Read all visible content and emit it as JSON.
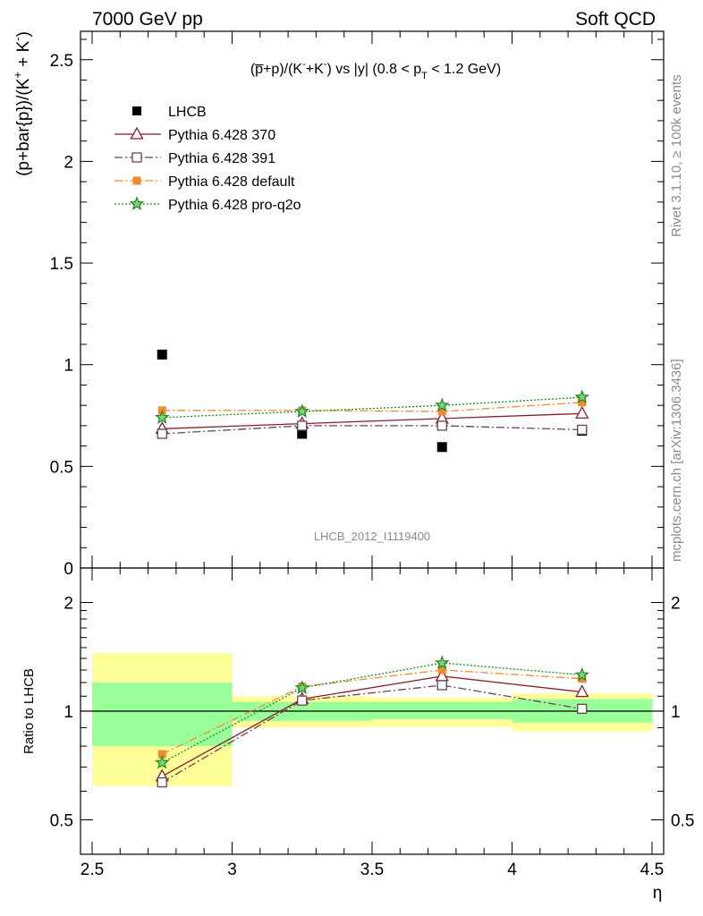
{
  "header": {
    "left": "7000 GeV pp",
    "right": "Soft QCD"
  },
  "side_labels": {
    "rivet": "Rivet 3.1.10, ≥ 100k events",
    "mcplots": "mcplots.cern.ch [arXiv:1306.3436]"
  },
  "colors": {
    "LHCB": "#000000",
    "370": "#8b1a2b",
    "391": "#6b4057",
    "default": "#f08a30",
    "proq2o": "#1a8a1a",
    "band_inner": "#99ff99",
    "band_outer": "#ffff99"
  },
  "chart_data": {
    "type": "scatter",
    "title": "(p̅+p)/(K⁻+K⁻) vs |y| (0.8 < pT < 1.2 GeV)",
    "analysis_label": "LHCB_2012_I1119400",
    "xlabel": "η",
    "ylabel": "(p+bar{p})/(K⁺ + K⁻)",
    "ratio_ylabel": "Ratio to LHCB",
    "xlim": [
      2.5,
      4.5
    ],
    "ylim": [
      0,
      2.65
    ],
    "ratio_ylim": [
      0.35,
      2.25
    ],
    "x_ticks": [
      "2.5",
      "3",
      "3.5",
      "4",
      "4.5"
    ],
    "y_ticks": [
      "0.5",
      "1",
      "1.5",
      "2",
      "2.5"
    ],
    "y_zero_label": "0",
    "ratio_y_ticks": [
      "0.5",
      "1",
      "2"
    ],
    "x": [
      2.75,
      3.25,
      3.75,
      4.25
    ],
    "series": [
      {
        "name": "LHCB",
        "key": "LHCB",
        "marker": "square",
        "style": "none",
        "values": [
          1.05,
          0.66,
          0.595,
          0.675
        ],
        "ratio": [
          1.0,
          1.0,
          1.0,
          1.0
        ]
      },
      {
        "name": "Pythia 6.428 370",
        "key": "370",
        "marker": "triangle",
        "style": "solid",
        "values": [
          0.685,
          0.71,
          0.735,
          0.76
        ],
        "ratio": [
          0.66,
          1.08,
          1.25,
          1.13
        ]
      },
      {
        "name": "Pythia 6.428 391",
        "key": "391",
        "marker": "opensquare",
        "style": "dashdot",
        "values": [
          0.66,
          0.7,
          0.7,
          0.68
        ],
        "ratio": [
          0.635,
          1.07,
          1.18,
          1.015
        ]
      },
      {
        "name": "Pythia 6.428 default",
        "key": "default",
        "marker": "filledsquare",
        "style": "dashdot",
        "values": [
          0.775,
          0.775,
          0.77,
          0.815
        ],
        "ratio": [
          0.76,
          1.17,
          1.3,
          1.23
        ]
      },
      {
        "name": "Pythia 6.428 pro-q2o",
        "key": "proq2o",
        "marker": "star",
        "style": "dotted",
        "values": [
          0.74,
          0.77,
          0.8,
          0.84
        ],
        "ratio": [
          0.72,
          1.16,
          1.36,
          1.26
        ]
      }
    ],
    "ratio_bands": [
      {
        "x": [
          2.5,
          3.0
        ],
        "inner": [
          0.8,
          1.2
        ],
        "outer": [
          0.62,
          1.45
        ]
      },
      {
        "x": [
          3.0,
          3.5
        ],
        "inner": [
          0.94,
          1.06
        ],
        "outer": [
          0.9,
          1.1
        ]
      },
      {
        "x": [
          3.5,
          4.0
        ],
        "inner": [
          0.95,
          1.06
        ],
        "outer": [
          0.905,
          1.09
        ]
      },
      {
        "x": [
          4.0,
          4.5
        ],
        "inner": [
          0.93,
          1.08
        ],
        "outer": [
          0.88,
          1.12
        ]
      }
    ],
    "legend_placement": "top-left"
  }
}
